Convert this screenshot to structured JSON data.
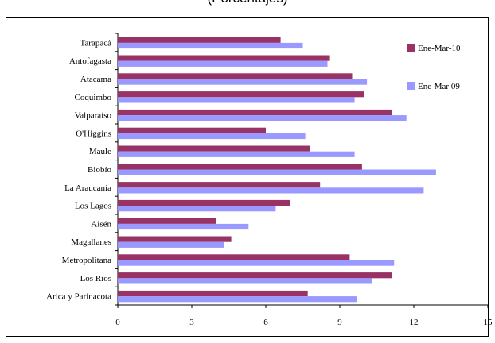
{
  "chart_data": {
    "type": "bar",
    "orientation": "horizontal",
    "title_fragment": "(Porcentajes)",
    "categories": [
      "Tarapacá",
      "Antofagasta",
      "Atacama",
      "Coquimbo",
      "Valparaíso",
      "O'Higgins",
      "Maule",
      "Biobío",
      "La Araucanía",
      "Los Lagos",
      "Aisén",
      "Magallanes",
      "Metropolitana",
      "Los Ríos",
      "Arica y Parinacota"
    ],
    "series": [
      {
        "name": "Ene-Mar-10",
        "color": "#993366",
        "values": [
          6.6,
          8.6,
          9.5,
          10.0,
          11.1,
          6.0,
          7.8,
          9.9,
          8.2,
          7.0,
          4.0,
          4.6,
          9.4,
          11.1,
          7.7
        ]
      },
      {
        "name": "Ene-Mar 09",
        "color": "#9999ff",
        "values": [
          7.5,
          8.5,
          10.1,
          9.6,
          11.7,
          7.6,
          9.6,
          12.9,
          12.4,
          6.4,
          5.3,
          4.3,
          11.2,
          10.3,
          9.7
        ]
      }
    ],
    "xlim": [
      0,
      15
    ],
    "xticks": [
      "0",
      "3",
      "6",
      "9",
      "12",
      "15"
    ],
    "legend_position": "top-right",
    "grid": false
  }
}
